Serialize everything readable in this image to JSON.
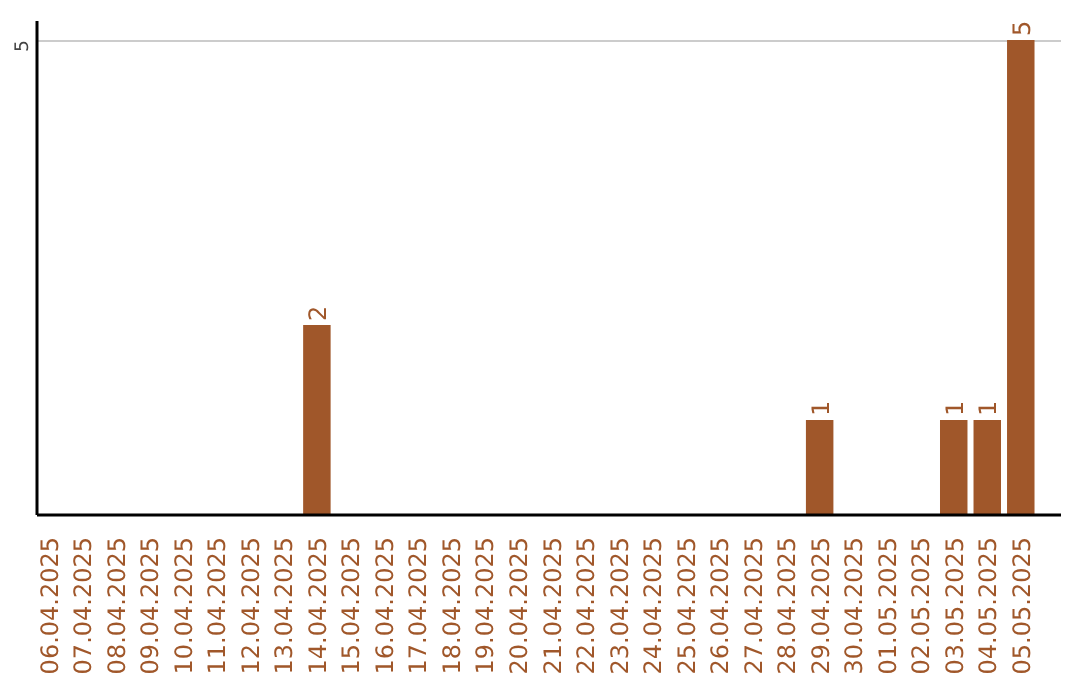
{
  "chart_data": {
    "type": "bar",
    "categories": [
      "06.04.2025",
      "07.04.2025",
      "08.04.2025",
      "09.04.2025",
      "10.04.2025",
      "11.04.2025",
      "12.04.2025",
      "13.04.2025",
      "14.04.2025",
      "15.04.2025",
      "16.04.2025",
      "17.04.2025",
      "18.04.2025",
      "19.04.2025",
      "20.04.2025",
      "21.04.2025",
      "22.04.2025",
      "23.04.2025",
      "24.04.2025",
      "25.04.2025",
      "26.04.2025",
      "27.04.2025",
      "28.04.2025",
      "29.04.2025",
      "30.04.2025",
      "01.05.2025",
      "02.05.2025",
      "03.05.2025",
      "04.05.2025",
      "05.05.2025"
    ],
    "values": [
      0,
      0,
      0,
      0,
      0,
      0,
      0,
      0,
      2,
      0,
      0,
      0,
      0,
      0,
      0,
      0,
      0,
      0,
      0,
      0,
      0,
      0,
      0,
      1,
      0,
      0,
      0,
      1,
      1,
      5
    ],
    "value_labels": [
      null,
      null,
      null,
      null,
      null,
      null,
      null,
      null,
      "2",
      null,
      null,
      null,
      null,
      null,
      null,
      null,
      null,
      null,
      null,
      null,
      null,
      null,
      null,
      "1",
      null,
      null,
      null,
      "1",
      "1",
      "5"
    ],
    "color": "#a0572a",
    "ylim": [
      0,
      5.2
    ],
    "yticks": [
      5
    ],
    "grid": "y"
  }
}
